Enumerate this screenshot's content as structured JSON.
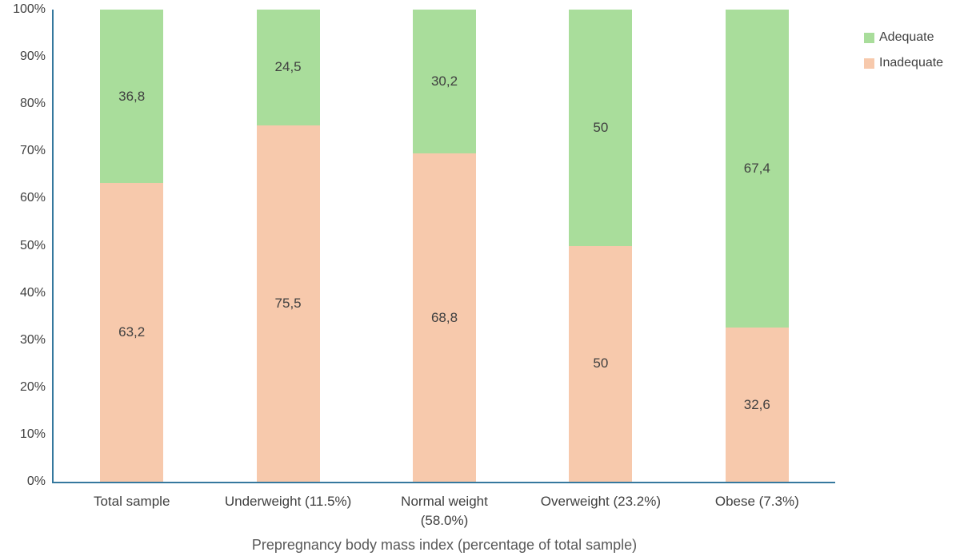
{
  "chart_data": {
    "type": "bar",
    "variant": "stacked-100",
    "title": "",
    "xlabel": "Prepregnancy body mass index (percentage of total sample)",
    "ylabel": "",
    "ylim": [
      0,
      100
    ],
    "grid": false,
    "legend_position": "top-right",
    "axis_color": "#35789E",
    "categories": [
      "Total sample",
      "Underweight (11.5%)",
      "Normal weight\n(58.0%)",
      "Overweight (23.2%)",
      "Obese (7.3%)"
    ],
    "series": [
      {
        "name": "Adequate",
        "color": "#A9DD9B",
        "values": [
          36.8,
          24.5,
          30.2,
          50,
          67.4
        ],
        "labels": [
          "36,8",
          "24,5",
          "30,2",
          "50",
          "67,4"
        ]
      },
      {
        "name": "Inadequate",
        "color": "#F7C9AC",
        "values": [
          63.2,
          75.5,
          68.8,
          50,
          32.6
        ],
        "labels": [
          "63,2",
          "75,5",
          "68,8",
          "50",
          "32,6"
        ]
      }
    ],
    "y_ticks": [
      "100%",
      "90%",
      "80%",
      "70%",
      "60%",
      "50%",
      "40%",
      "30%",
      "20%",
      "10%",
      "0%"
    ]
  }
}
